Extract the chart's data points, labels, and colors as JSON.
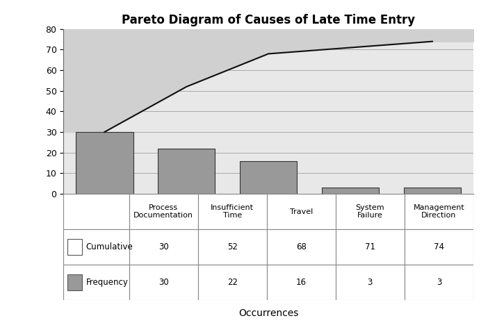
{
  "title": "Pareto Diagram of Causes of Late Time Entry",
  "categories": [
    "Process\nDocumentation",
    "Insufficient\nTime",
    "Travel",
    "System\nFailure",
    "Management\nDirection"
  ],
  "frequencies": [
    30,
    22,
    16,
    3,
    3
  ],
  "cumulative": [
    30,
    52,
    68,
    71,
    74
  ],
  "bar_color": "#999999",
  "bar_edge_color": "#333333",
  "line_color": "#111111",
  "fill_color": "#cccccc",
  "chart_bg_color": "#e8e8e8",
  "ylim": [
    0,
    80
  ],
  "yticks": [
    0,
    10,
    20,
    30,
    40,
    50,
    60,
    70,
    80
  ],
  "xlabel": "Occurrences",
  "legend_cumulative_label": "Cumulative",
  "legend_frequency_label": "Frequency",
  "table_cumulative_values": [
    "30",
    "52",
    "68",
    "71",
    "74"
  ],
  "table_frequency_values": [
    "30",
    "22",
    "16",
    "3",
    "3"
  ],
  "background_color": "#ffffff",
  "title_fontsize": 12,
  "axis_fontsize": 9,
  "table_fontsize": 8.5
}
